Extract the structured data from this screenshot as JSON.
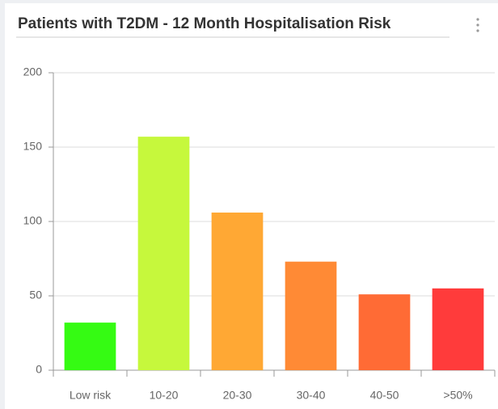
{
  "chart_data": {
    "type": "bar",
    "title": "Patients with T2DM - 12 Month Hospitalisation Risk",
    "categories": [
      "Low risk",
      "10-20",
      "20-30",
      "30-40",
      "40-50",
      ">50%"
    ],
    "values": [
      32,
      157,
      106,
      73,
      51,
      55
    ],
    "colors": [
      "#35fb13",
      "#c6f83c",
      "#ffa834",
      "#ff8a35",
      "#ff6b35",
      "#ff3b3b"
    ],
    "ylim": [
      0,
      200
    ],
    "yticks": [
      0,
      50,
      100,
      150,
      200
    ],
    "grid": true
  }
}
